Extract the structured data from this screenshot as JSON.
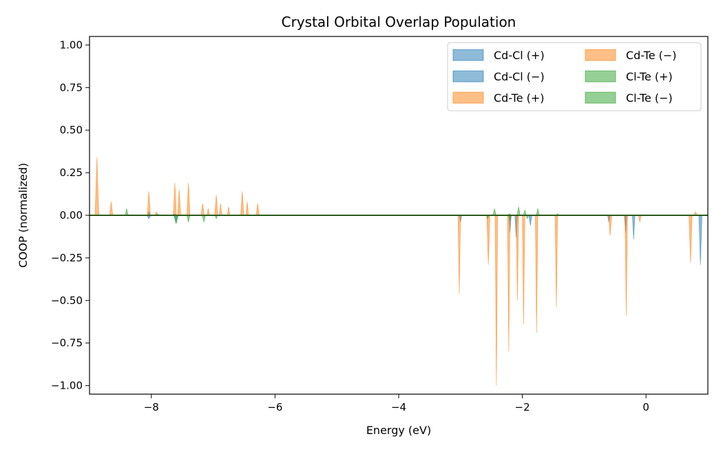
{
  "chart_data": {
    "type": "area",
    "title": "Crystal Orbital Overlap Population",
    "xlabel": "Energy (eV)",
    "ylabel": "COOP (normalized)",
    "xlim": [
      -9.0,
      1.0
    ],
    "ylim": [
      -1.05,
      1.05
    ],
    "xticks": [
      -8,
      -6,
      -4,
      -2,
      0
    ],
    "xtick_labels": [
      "−8",
      "−6",
      "−4",
      "−2",
      "0"
    ],
    "yticks": [
      1.0,
      0.75,
      0.5,
      0.25,
      0.0,
      -0.25,
      -0.5,
      -0.75,
      -1.0
    ],
    "ytick_labels": [
      "1.00",
      "0.75",
      "0.50",
      "0.25",
      "0.00",
      "−0.25",
      "−0.50",
      "−0.75",
      "−1.00"
    ],
    "grid": false,
    "legend_position": "top-right",
    "legend_columns": 2,
    "baseline_color": "#2a5a1a",
    "series": [
      {
        "name": "Cd-Cl (+)",
        "color": "#1f77b4",
        "opacity": 0.5,
        "peaks": [
          [
            -8.04,
            0.02,
            0.03
          ],
          [
            -7.63,
            0.01,
            0.03
          ]
        ]
      },
      {
        "name": "Cd-Cl (−)",
        "color": "#1f77b4",
        "opacity": 0.5,
        "peaks": [
          [
            -8.04,
            -0.02,
            0.03
          ],
          [
            -7.6,
            -0.04,
            0.03
          ],
          [
            -3.0,
            -0.04,
            0.02
          ],
          [
            -2.2,
            -0.1,
            0.02
          ],
          [
            -2.1,
            -0.13,
            0.02
          ],
          [
            -1.87,
            -0.06,
            0.025
          ],
          [
            -0.6,
            -0.04,
            0.02
          ],
          [
            -0.33,
            -0.1,
            0.02
          ],
          [
            -0.2,
            -0.14,
            0.02
          ],
          [
            0.88,
            -0.29,
            0.025
          ]
        ]
      },
      {
        "name": "Cd-Te (+)",
        "color": "#ff7f0e",
        "opacity": 0.5,
        "peaks": [
          [
            -8.88,
            0.34,
            0.03
          ],
          [
            -8.65,
            0.08,
            0.025
          ],
          [
            -8.04,
            0.14,
            0.025
          ],
          [
            -7.92,
            0.02,
            0.02
          ],
          [
            -7.62,
            0.19,
            0.025
          ],
          [
            -7.55,
            0.15,
            0.025
          ],
          [
            -7.4,
            0.19,
            0.025
          ],
          [
            -7.17,
            0.07,
            0.025
          ],
          [
            -7.08,
            0.04,
            0.02
          ],
          [
            -6.95,
            0.12,
            0.025
          ],
          [
            -6.88,
            0.07,
            0.02
          ],
          [
            -6.75,
            0.05,
            0.02
          ],
          [
            -6.53,
            0.14,
            0.025
          ],
          [
            -6.45,
            0.08,
            0.02
          ],
          [
            -6.28,
            0.07,
            0.025
          ],
          [
            0.8,
            0.02,
            0.03
          ]
        ]
      },
      {
        "name": "Cd-Te (−)",
        "color": "#ff7f0e",
        "opacity": 0.5,
        "peaks": [
          [
            -3.02,
            -0.46,
            0.02
          ],
          [
            -2.55,
            -0.29,
            0.025
          ],
          [
            -2.42,
            -1.0,
            0.02
          ],
          [
            -2.22,
            -0.8,
            0.02
          ],
          [
            -2.08,
            -0.5,
            0.02
          ],
          [
            -1.98,
            -0.64,
            0.02
          ],
          [
            -1.77,
            -0.69,
            0.02
          ],
          [
            -1.45,
            -0.54,
            0.02
          ],
          [
            -0.58,
            -0.12,
            0.025
          ],
          [
            -0.32,
            -0.59,
            0.02
          ],
          [
            -0.1,
            -0.04,
            0.02
          ],
          [
            0.72,
            -0.28,
            0.025
          ]
        ]
      },
      {
        "name": "Cl-Te (+)",
        "color": "#2ca02c",
        "opacity": 0.5,
        "peaks": [
          [
            -8.4,
            0.04,
            0.025
          ],
          [
            -7.9,
            0.01,
            0.02
          ],
          [
            -2.45,
            0.04,
            0.025
          ],
          [
            -2.21,
            0.01,
            0.02
          ],
          [
            -2.06,
            0.05,
            0.025
          ],
          [
            -1.96,
            0.03,
            0.025
          ],
          [
            -1.75,
            0.04,
            0.025
          ],
          [
            -1.43,
            0.01,
            0.02
          ]
        ]
      },
      {
        "name": "Cl-Te (−)",
        "color": "#2ca02c",
        "opacity": 0.5,
        "peaks": [
          [
            -7.6,
            -0.05,
            0.035
          ],
          [
            -7.4,
            -0.04,
            0.025
          ],
          [
            -7.15,
            -0.04,
            0.025
          ],
          [
            -6.95,
            -0.02,
            0.02
          ],
          [
            -2.56,
            -0.02,
            0.02
          ],
          [
            -2.2,
            -0.03,
            0.02
          ],
          [
            -1.92,
            -0.02,
            0.02
          ]
        ]
      }
    ]
  }
}
